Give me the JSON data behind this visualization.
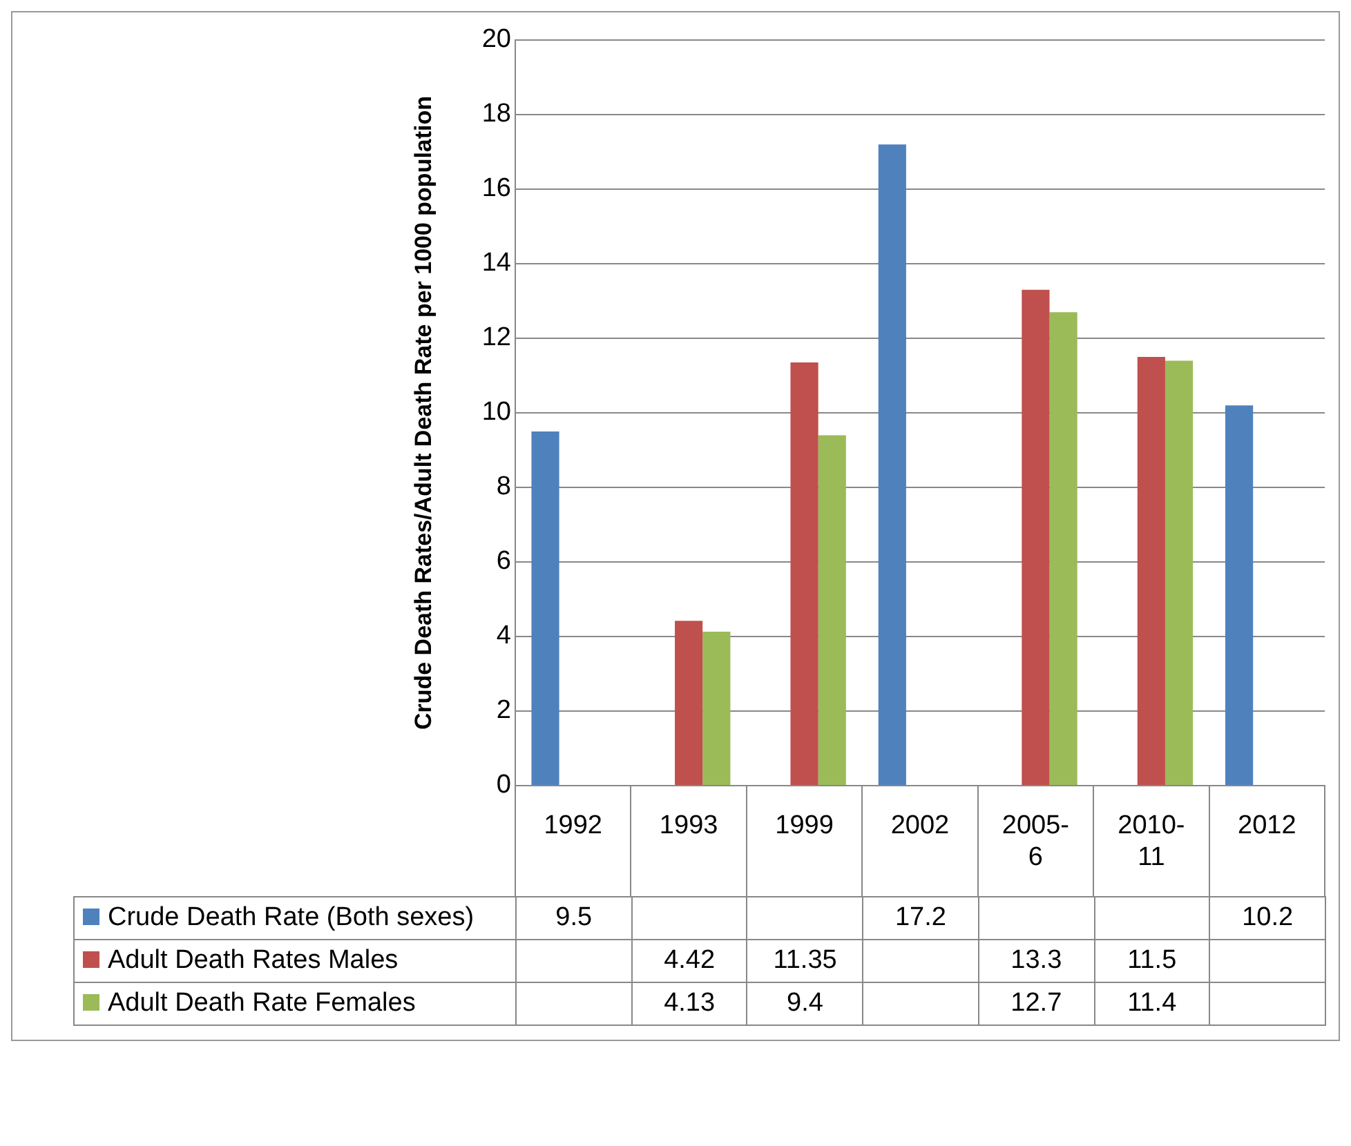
{
  "chart_data": {
    "type": "bar",
    "ylabel": "Crude Death Rates/Adult Death Rate per 1000 population",
    "categories": [
      "1992",
      "1993",
      "1999",
      "2002",
      "2005-6",
      "2010-11",
      "2012"
    ],
    "series": [
      {
        "name": "Crude Death Rate (Both sexes)",
        "color": "#4f81bd",
        "values": [
          9.5,
          null,
          null,
          17.2,
          null,
          null,
          10.2
        ]
      },
      {
        "name": "Adult Death Rates Males",
        "color": "#c0504d",
        "values": [
          null,
          4.42,
          11.35,
          null,
          13.3,
          11.5,
          null
        ]
      },
      {
        "name": "Adult Death Rate Females",
        "color": "#9bbb59",
        "values": [
          null,
          4.13,
          9.4,
          null,
          12.7,
          11.4,
          null
        ]
      }
    ],
    "ylim": [
      0,
      20
    ],
    "yticks": [
      0,
      2,
      4,
      6,
      8,
      10,
      12,
      14,
      16,
      18,
      20
    ],
    "grid": "y",
    "legend": "bottom",
    "data_labels": true
  }
}
